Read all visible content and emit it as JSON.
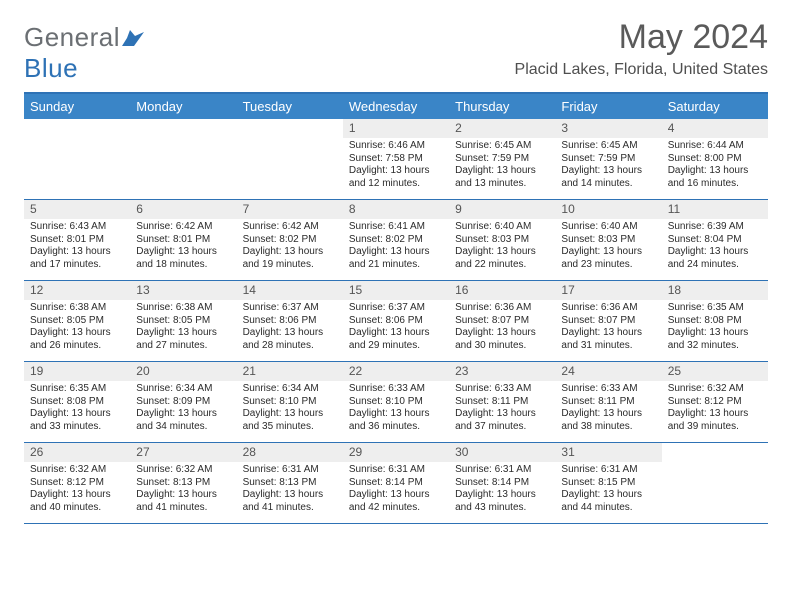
{
  "logo": {
    "part1": "General",
    "part2": "Blue"
  },
  "title": "May 2024",
  "location": "Placid Lakes, Florida, United States",
  "colors": {
    "header_bar": "#3a85c7",
    "rule": "#2e72b5",
    "daynum_bg": "#eeeeee",
    "text": "#333333",
    "logo_gray": "#6b6f73",
    "logo_blue": "#2e72b5"
  },
  "dayNames": [
    "Sunday",
    "Monday",
    "Tuesday",
    "Wednesday",
    "Thursday",
    "Friday",
    "Saturday"
  ],
  "weeks": [
    [
      {
        "n": "",
        "sr": "",
        "ss": "",
        "dl": ""
      },
      {
        "n": "",
        "sr": "",
        "ss": "",
        "dl": ""
      },
      {
        "n": "",
        "sr": "",
        "ss": "",
        "dl": ""
      },
      {
        "n": "1",
        "sr": "6:46 AM",
        "ss": "7:58 PM",
        "dl": "13 hours and 12 minutes."
      },
      {
        "n": "2",
        "sr": "6:45 AM",
        "ss": "7:59 PM",
        "dl": "13 hours and 13 minutes."
      },
      {
        "n": "3",
        "sr": "6:45 AM",
        "ss": "7:59 PM",
        "dl": "13 hours and 14 minutes."
      },
      {
        "n": "4",
        "sr": "6:44 AM",
        "ss": "8:00 PM",
        "dl": "13 hours and 16 minutes."
      }
    ],
    [
      {
        "n": "5",
        "sr": "6:43 AM",
        "ss": "8:01 PM",
        "dl": "13 hours and 17 minutes."
      },
      {
        "n": "6",
        "sr": "6:42 AM",
        "ss": "8:01 PM",
        "dl": "13 hours and 18 minutes."
      },
      {
        "n": "7",
        "sr": "6:42 AM",
        "ss": "8:02 PM",
        "dl": "13 hours and 19 minutes."
      },
      {
        "n": "8",
        "sr": "6:41 AM",
        "ss": "8:02 PM",
        "dl": "13 hours and 21 minutes."
      },
      {
        "n": "9",
        "sr": "6:40 AM",
        "ss": "8:03 PM",
        "dl": "13 hours and 22 minutes."
      },
      {
        "n": "10",
        "sr": "6:40 AM",
        "ss": "8:03 PM",
        "dl": "13 hours and 23 minutes."
      },
      {
        "n": "11",
        "sr": "6:39 AM",
        "ss": "8:04 PM",
        "dl": "13 hours and 24 minutes."
      }
    ],
    [
      {
        "n": "12",
        "sr": "6:38 AM",
        "ss": "8:05 PM",
        "dl": "13 hours and 26 minutes."
      },
      {
        "n": "13",
        "sr": "6:38 AM",
        "ss": "8:05 PM",
        "dl": "13 hours and 27 minutes."
      },
      {
        "n": "14",
        "sr": "6:37 AM",
        "ss": "8:06 PM",
        "dl": "13 hours and 28 minutes."
      },
      {
        "n": "15",
        "sr": "6:37 AM",
        "ss": "8:06 PM",
        "dl": "13 hours and 29 minutes."
      },
      {
        "n": "16",
        "sr": "6:36 AM",
        "ss": "8:07 PM",
        "dl": "13 hours and 30 minutes."
      },
      {
        "n": "17",
        "sr": "6:36 AM",
        "ss": "8:07 PM",
        "dl": "13 hours and 31 minutes."
      },
      {
        "n": "18",
        "sr": "6:35 AM",
        "ss": "8:08 PM",
        "dl": "13 hours and 32 minutes."
      }
    ],
    [
      {
        "n": "19",
        "sr": "6:35 AM",
        "ss": "8:08 PM",
        "dl": "13 hours and 33 minutes."
      },
      {
        "n": "20",
        "sr": "6:34 AM",
        "ss": "8:09 PM",
        "dl": "13 hours and 34 minutes."
      },
      {
        "n": "21",
        "sr": "6:34 AM",
        "ss": "8:10 PM",
        "dl": "13 hours and 35 minutes."
      },
      {
        "n": "22",
        "sr": "6:33 AM",
        "ss": "8:10 PM",
        "dl": "13 hours and 36 minutes."
      },
      {
        "n": "23",
        "sr": "6:33 AM",
        "ss": "8:11 PM",
        "dl": "13 hours and 37 minutes."
      },
      {
        "n": "24",
        "sr": "6:33 AM",
        "ss": "8:11 PM",
        "dl": "13 hours and 38 minutes."
      },
      {
        "n": "25",
        "sr": "6:32 AM",
        "ss": "8:12 PM",
        "dl": "13 hours and 39 minutes."
      }
    ],
    [
      {
        "n": "26",
        "sr": "6:32 AM",
        "ss": "8:12 PM",
        "dl": "13 hours and 40 minutes."
      },
      {
        "n": "27",
        "sr": "6:32 AM",
        "ss": "8:13 PM",
        "dl": "13 hours and 41 minutes."
      },
      {
        "n": "28",
        "sr": "6:31 AM",
        "ss": "8:13 PM",
        "dl": "13 hours and 41 minutes."
      },
      {
        "n": "29",
        "sr": "6:31 AM",
        "ss": "8:14 PM",
        "dl": "13 hours and 42 minutes."
      },
      {
        "n": "30",
        "sr": "6:31 AM",
        "ss": "8:14 PM",
        "dl": "13 hours and 43 minutes."
      },
      {
        "n": "31",
        "sr": "6:31 AM",
        "ss": "8:15 PM",
        "dl": "13 hours and 44 minutes."
      },
      {
        "n": "",
        "sr": "",
        "ss": "",
        "dl": ""
      }
    ]
  ],
  "labels": {
    "sunrise": "Sunrise:",
    "sunset": "Sunset:",
    "daylight": "Daylight:"
  }
}
